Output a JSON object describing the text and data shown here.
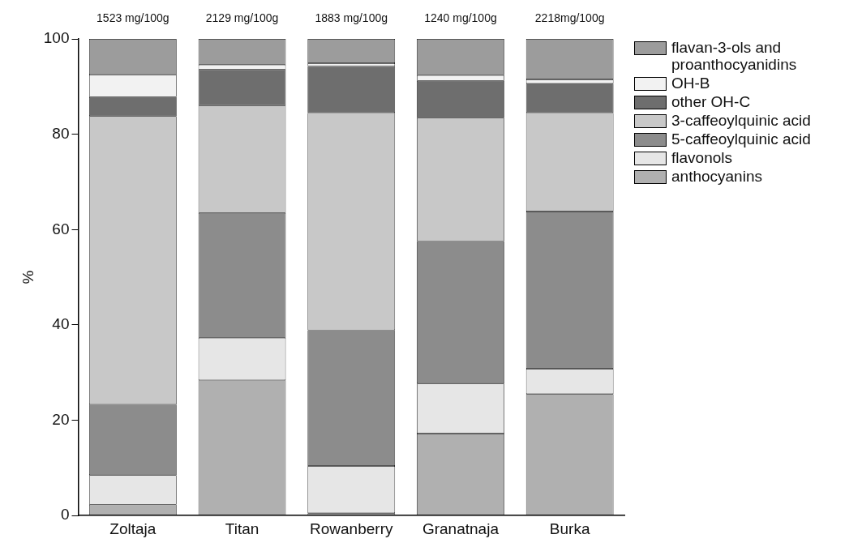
{
  "chart_data": {
    "type": "bar",
    "stacked": true,
    "ylabel": "%",
    "categories": [
      "Zoltaja",
      "Titan",
      "Rowanberry",
      "Granatnaja",
      "Burka"
    ],
    "series": [
      {
        "name": "anthocyanins",
        "color": "#b0b0b0",
        "values": [
          2.3,
          28.4,
          0.5,
          17.2,
          25.5
        ]
      },
      {
        "name": "flavonols",
        "color": "#e6e6e6",
        "values": [
          6.2,
          8.9,
          9.9,
          10.5,
          5.3
        ]
      },
      {
        "name": "5-caffeoylquinic acid",
        "color": "#8c8c8c",
        "values": [
          14.8,
          26.2,
          28.5,
          29.9,
          33.0
        ]
      },
      {
        "name": "3-caffeoylquinic acid",
        "color": "#c8c8c8",
        "values": [
          60.5,
          22.5,
          45.6,
          25.8,
          20.7
        ]
      },
      {
        "name": "other OH-C",
        "color": "#6e6e6e",
        "values": [
          4.0,
          7.6,
          9.8,
          7.8,
          6.1
        ]
      },
      {
        "name": "OH-B",
        "color": "#f2f2f2",
        "values": [
          4.7,
          1.0,
          0.6,
          1.2,
          0.9
        ]
      },
      {
        "name": "flavan-3-ols and proanthocyanidins",
        "color": "#9c9c9c",
        "values": [
          7.5,
          5.4,
          5.1,
          7.6,
          8.5
        ]
      }
    ],
    "ylim": [
      0,
      100
    ],
    "yticks": [
      0,
      20,
      40,
      60,
      80,
      100
    ],
    "grid": false,
    "legend": "top right",
    "annotations": [
      {
        "text": "1523 mg/100g",
        "x": "Zoltaja",
        "y": 100
      },
      {
        "text": "2129 mg/100g",
        "x": "Titan",
        "y": 100
      },
      {
        "text": "1883 mg/100g",
        "x": "Rowanberry",
        "y": 100
      },
      {
        "text": "1240 mg/100g",
        "x": "Granatnaja",
        "y": 100
      },
      {
        "text": "2218mg/100g",
        "x": "Burka",
        "y": 100
      }
    ]
  }
}
